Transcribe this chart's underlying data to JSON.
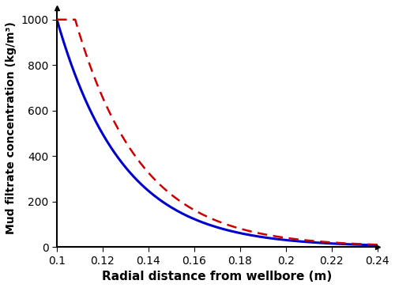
{
  "xlabel": "Radial distance from wellbore (m)",
  "ylabel": "Mud filtrate concentration (kg/m³)",
  "xlim": [
    0.1,
    0.24
  ],
  "ylim": [
    0,
    1050
  ],
  "yticks": [
    0,
    200,
    400,
    600,
    800,
    1000
  ],
  "xticks": [
    0.1,
    0.12,
    0.14,
    0.16,
    0.18,
    0.2,
    0.22,
    0.24
  ],
  "rw": 0.1,
  "re": 0.24,
  "C_max": 1000,
  "blue_line_color": "#0000cc",
  "red_line_color": "#cc0000",
  "blue_linewidth": 2.2,
  "red_linewidth": 1.8,
  "xlabel_fontsize": 11,
  "ylabel_fontsize": 10,
  "tick_fontsize": 10,
  "decay_k": 35.0,
  "red_shift": 0.008
}
